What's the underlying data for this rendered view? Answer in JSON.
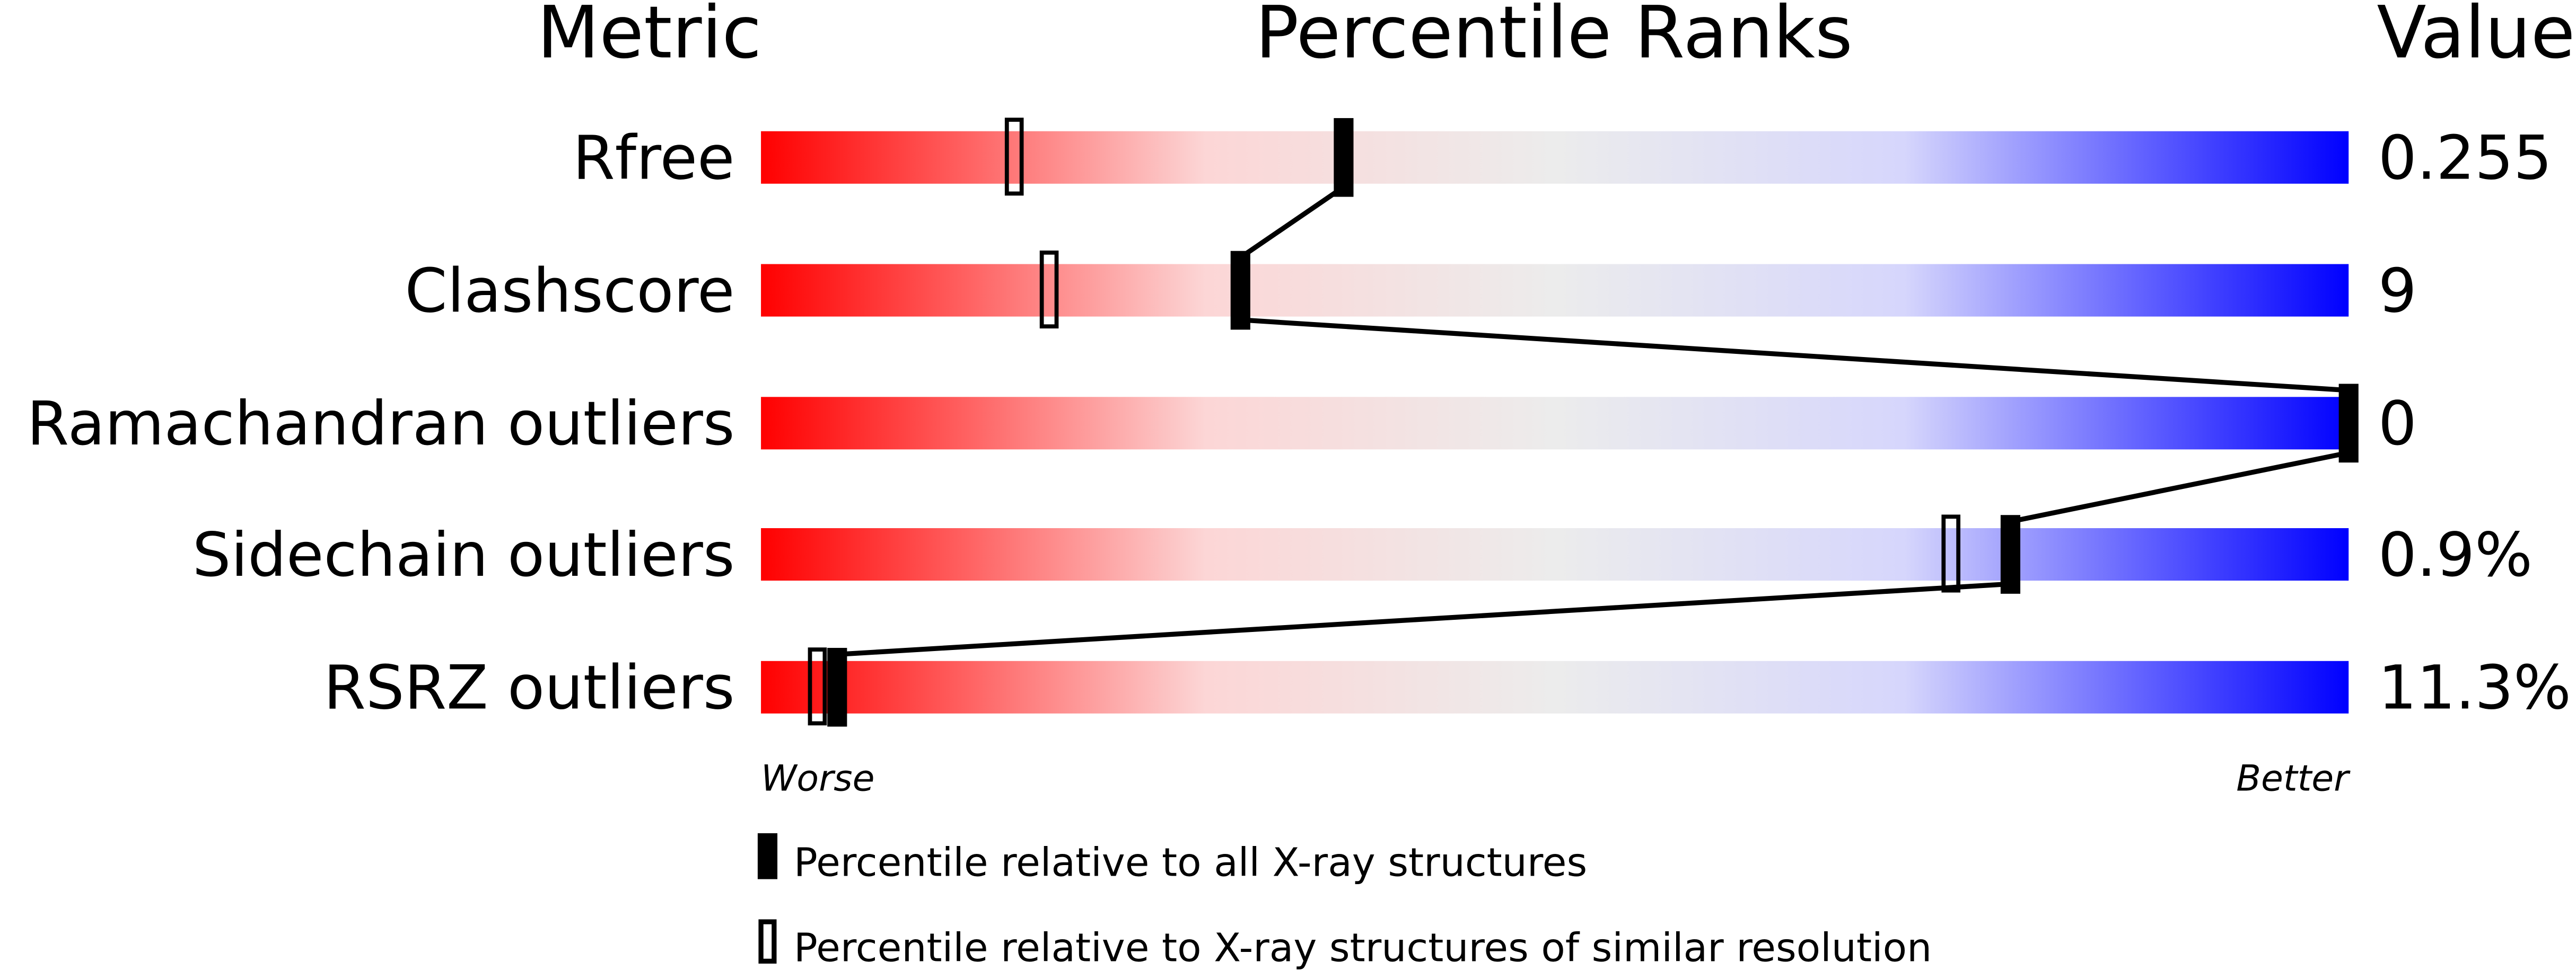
{
  "chart_data": {
    "type": "percentile-slider",
    "headers": {
      "metric": "Metric",
      "ranks": "Percentile Ranks",
      "value": "Value"
    },
    "xlim": [
      0,
      100
    ],
    "axis_labels": {
      "left": "Worse",
      "right": "Better"
    },
    "rows": [
      {
        "metric": "Rfree",
        "value": "0.255",
        "percentile_all": 36.7,
        "percentile_similar": 15.9
      },
      {
        "metric": "Clashscore",
        "value": "9",
        "percentile_all": 30.2,
        "percentile_similar": 18.1
      },
      {
        "metric": "Ramachandran outliers",
        "value": "0",
        "percentile_all": 100,
        "percentile_similar": 100
      },
      {
        "metric": "Sidechain outliers",
        "value": "0.9%",
        "percentile_all": 78.7,
        "percentile_similar": 74.9
      },
      {
        "metric": "RSRZ outliers",
        "value": "11.3%",
        "percentile_all": 4.8,
        "percentile_similar": 3.5
      }
    ],
    "legend": [
      {
        "marker": "filled",
        "label": "Percentile relative to all X-ray structures"
      },
      {
        "marker": "open",
        "label": "Percentile relative to X-ray structures of similar resolution"
      }
    ],
    "colors": {
      "worse": "#ff0000",
      "middle": "#eeeeee",
      "better": "#0000ff"
    }
  }
}
